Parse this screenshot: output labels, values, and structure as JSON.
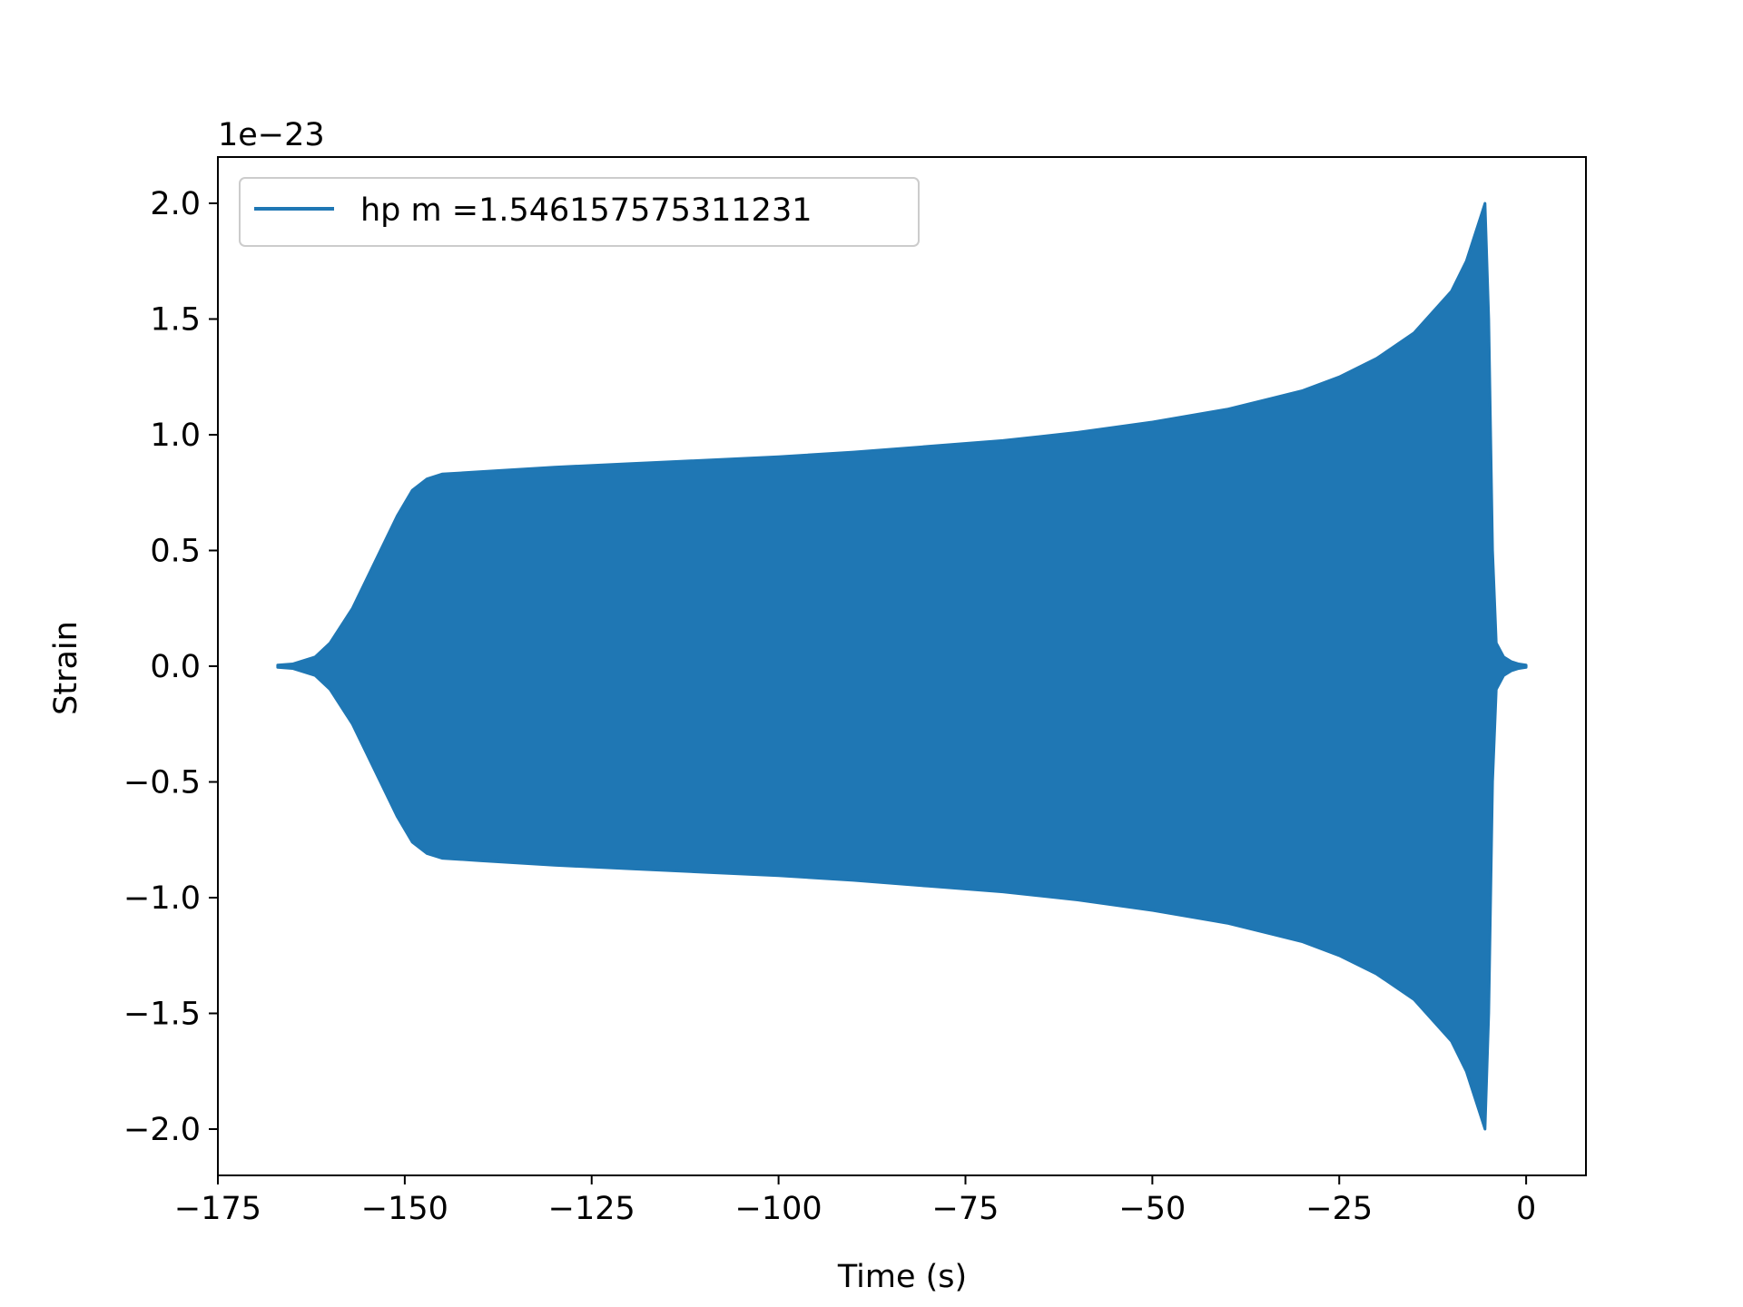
{
  "chart_data": {
    "type": "line",
    "xlabel": "Time (s)",
    "ylabel": "Strain",
    "y_offset_label": "1e−23",
    "y_scale_factor": 1e-23,
    "xlim": [
      -175,
      8
    ],
    "ylim": [
      -2.2,
      2.2
    ],
    "grid": false,
    "legend_position": "top-left",
    "series": [
      {
        "name": "hp m =1.546157575311231",
        "color": "#1f77b4",
        "envelope": {
          "t": [
            -167,
            -165,
            -162,
            -160,
            -157,
            -154,
            -151,
            -149,
            -147,
            -145,
            -140,
            -130,
            -120,
            -110,
            -100,
            -90,
            -80,
            -70,
            -60,
            -50,
            -40,
            -30,
            -25,
            -20,
            -15,
            -10,
            -8,
            -6,
            -5.5,
            -5,
            -4.5,
            -4,
            -3,
            -2,
            -1,
            0
          ],
          "amplitude": [
            0.005,
            0.01,
            0.04,
            0.1,
            0.25,
            0.45,
            0.65,
            0.76,
            0.81,
            0.83,
            0.84,
            0.86,
            0.875,
            0.89,
            0.905,
            0.925,
            0.95,
            0.975,
            1.01,
            1.055,
            1.11,
            1.19,
            1.25,
            1.33,
            1.44,
            1.62,
            1.75,
            1.95,
            2.0,
            1.5,
            0.5,
            0.1,
            0.04,
            0.02,
            0.01,
            0.005
          ]
        }
      }
    ],
    "x_ticks": [
      {
        "value": -175,
        "label": "−175"
      },
      {
        "value": -150,
        "label": "−150"
      },
      {
        "value": -125,
        "label": "−125"
      },
      {
        "value": -100,
        "label": "−100"
      },
      {
        "value": -75,
        "label": "−75"
      },
      {
        "value": -50,
        "label": "−50"
      },
      {
        "value": -25,
        "label": "−25"
      },
      {
        "value": 0,
        "label": "0"
      }
    ],
    "y_ticks": [
      {
        "value": 2.0,
        "label": "2.0"
      },
      {
        "value": 1.5,
        "label": "1.5"
      },
      {
        "value": 1.0,
        "label": "1.0"
      },
      {
        "value": 0.5,
        "label": "0.5"
      },
      {
        "value": 0.0,
        "label": "0.0"
      },
      {
        "value": -0.5,
        "label": "−0.5"
      },
      {
        "value": -1.0,
        "label": "−1.0"
      },
      {
        "value": -1.5,
        "label": "−1.5"
      },
      {
        "value": -2.0,
        "label": "−2.0"
      }
    ]
  }
}
